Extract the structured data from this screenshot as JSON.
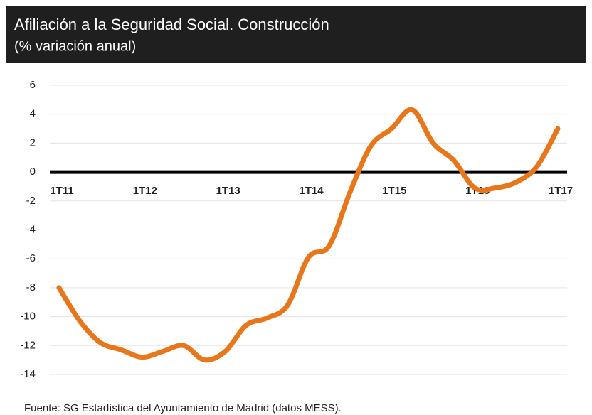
{
  "chart_data": {
    "type": "line",
    "title": "Afiliación a la Seguridad Social. Construcción",
    "subtitle": "(% variación anual)",
    "source": "Fuente: SG Estadística del Ayuntamiento de Madrid (datos MESS).",
    "categories": [
      "1T11",
      null,
      null,
      null,
      "1T12",
      null,
      null,
      null,
      "1T13",
      null,
      null,
      null,
      "1T14",
      null,
      null,
      null,
      "1T15",
      null,
      null,
      null,
      "1T16",
      null,
      null,
      null,
      "1T17"
    ],
    "values": [
      -8.0,
      -10.3,
      -11.8,
      -12.3,
      -12.8,
      -12.4,
      -12.0,
      -13.0,
      -12.4,
      -10.6,
      -10.1,
      -9.2,
      -5.9,
      -5.1,
      -1.4,
      1.8,
      3.0,
      4.3,
      2.0,
      0.8,
      -1.1,
      -1.1,
      -0.7,
      0.4,
      3.0
    ],
    "color": "#e8761a",
    "ylim": [
      -14,
      6
    ],
    "yticks": [
      -14,
      -12,
      -10,
      -8,
      -6,
      -4,
      -2,
      0,
      2,
      4,
      6
    ],
    "grid": true
  }
}
